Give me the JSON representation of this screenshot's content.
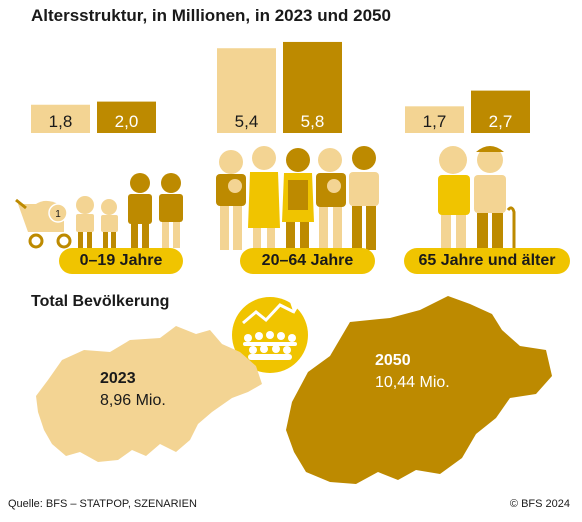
{
  "chart_data": {
    "type": "bar",
    "title": "Altersstruktur, in Millionen, in 2023 und 2050",
    "categories": [
      "0–19 Jahre",
      "20–64 Jahre",
      "65 Jahre und älter"
    ],
    "series": [
      {
        "values": [
          1.8,
          5.4,
          1.7
        ],
        "labels": [
          "1,8",
          "5,4",
          "1,7"
        ]
      },
      {
        "values": [
          2.0,
          5.8,
          2.7
        ],
        "labels": [
          "2,0",
          "5,8",
          "2,7"
        ]
      }
    ],
    "colors": {
      "2023": "#f3d493",
      "2050": "#bd8a00",
      "accent": "#f0c400",
      "figure_2023": "#f3d493",
      "figure_2050": "#bd8a00"
    }
  },
  "totals": {
    "heading": "Total Bevölkerung",
    "y2023": {
      "year": "2023",
      "value": "8,96 Mio."
    },
    "y2050": {
      "year": "2050",
      "value": "10,44 Mio."
    }
  },
  "footer": {
    "source": "Quelle: BFS – STATPOP, SZENARIEN",
    "copyright": "© BFS 2024"
  },
  "icons": [
    "stroller-icon",
    "people-figures-icon",
    "crowd-growth-icon",
    "switzerland-map"
  ]
}
